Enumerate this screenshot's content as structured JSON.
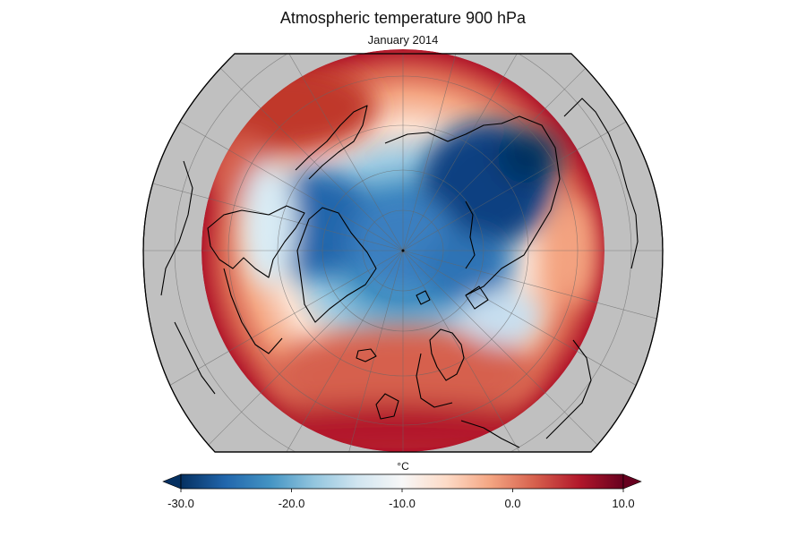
{
  "header": {
    "title": "Atmospheric temperature 900 hPa",
    "subtitle": "January 2014"
  },
  "colorbar": {
    "unit": "°C",
    "min": -30.0,
    "max": 10.0,
    "colormap": "RdBu_r",
    "extend": "both",
    "ticks": [
      {
        "value": -30.0,
        "label": "-30.0"
      },
      {
        "value": -20.0,
        "label": "-20.0"
      },
      {
        "value": -10.0,
        "label": "-10.0"
      },
      {
        "value": 0.0,
        "label": "0.0"
      },
      {
        "value": 10.0,
        "label": "10.0"
      }
    ],
    "colors": [
      "#053061",
      "#2166ac",
      "#4393c3",
      "#92c5de",
      "#d1e5f0",
      "#f7f7f7",
      "#fddbc7",
      "#f4a582",
      "#d6604d",
      "#b2182b",
      "#67001f"
    ]
  },
  "map": {
    "projection": "polar-stereographic-north",
    "ocean_outside_color": "#c0c0c0",
    "coastline_color": "#000000",
    "graticule": true
  }
}
